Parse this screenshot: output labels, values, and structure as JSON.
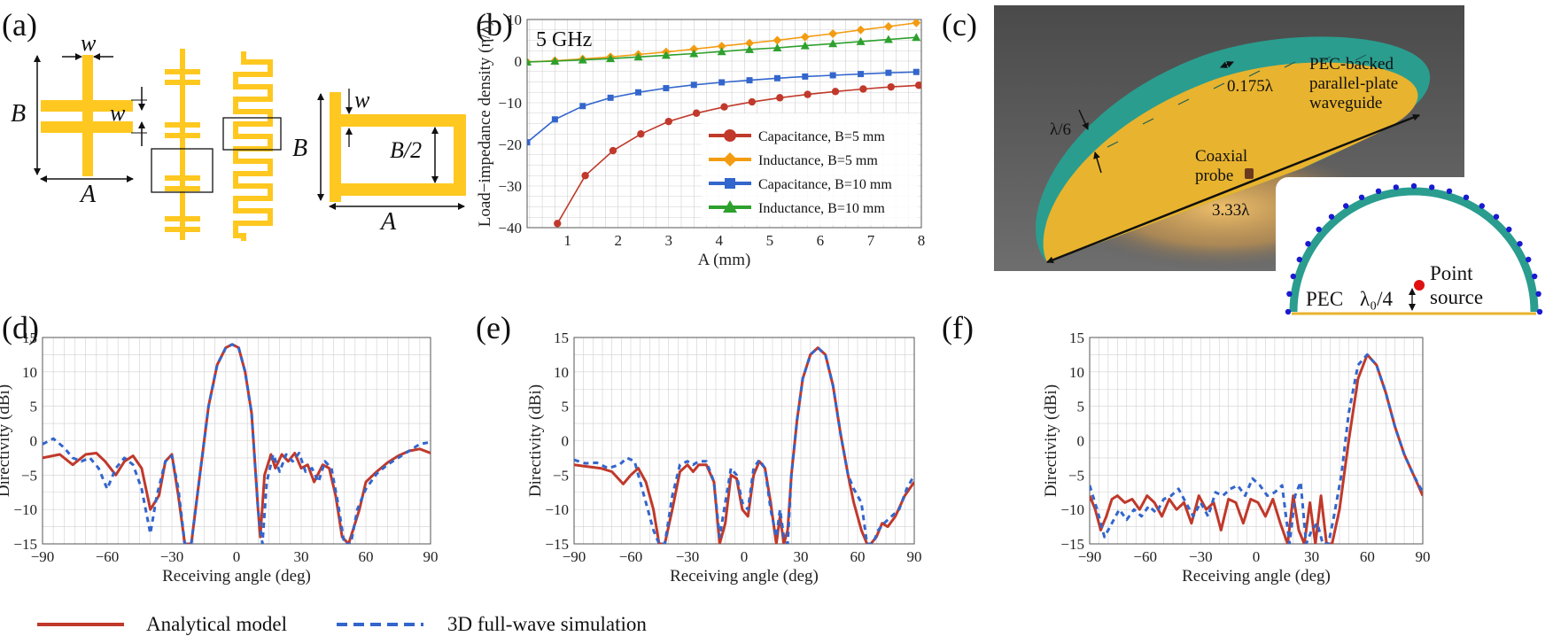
{
  "panel_labels": [
    "(a)",
    "(b)",
    "(c)",
    "(d)",
    "(e)",
    "(f)"
  ],
  "colors": {
    "gold": "#FFC820",
    "teal": "#2A9D8F",
    "red": "#C0392B",
    "orange": "#F39C12",
    "blue": "#3366CC",
    "green": "#2EA02E",
    "dark_bg": "#5A5A5A"
  },
  "panel_a": {
    "labels": {
      "w_top": "w",
      "w_side": "w",
      "B_left": "B",
      "A_bottom": "A",
      "w_right": "w",
      "B_right": "B",
      "B_half": "B/2",
      "A_right": "A"
    }
  },
  "panel_c": {
    "texts": {
      "line1": "PEC-backed",
      "line2": "parallel-plate",
      "line3": "waveguide",
      "thickness": "0.175λ",
      "height": "λ/6",
      "probe1": "Coaxial",
      "probe2": "probe",
      "diameter": "3.33λ",
      "inset_pec": "PEC",
      "inset_dist": "λ₀/4",
      "inset_src1": "Point",
      "inset_src2": "source"
    }
  },
  "legend_bottom": {
    "analytical": "Analytical model",
    "simulation": "3D full-wave simulation"
  },
  "chart_data": [
    {
      "id": "b",
      "type": "line",
      "annotation": "5 GHz",
      "xlabel": "A (mm)",
      "ylabel": "Load−impedance  density (η/λ)",
      "xlim": [
        0.2,
        8
      ],
      "ylim": [
        -40,
        10
      ],
      "xticks": [
        1,
        2,
        3,
        4,
        5,
        6,
        7,
        8
      ],
      "yticks": [
        -40,
        -30,
        -20,
        -10,
        0,
        10
      ],
      "series": [
        {
          "name": "Capacitance, B=5 mm",
          "color": "#C0392B",
          "marker": "circle",
          "x": [
            0.8,
            1.35,
            1.9,
            2.45,
            3.0,
            3.55,
            4.1,
            4.65,
            5.2,
            5.75,
            6.3,
            6.85,
            7.4,
            7.95
          ],
          "y": [
            -39,
            -27.5,
            -21.5,
            -17.5,
            -14.5,
            -12.5,
            -11,
            -9.8,
            -8.8,
            -8,
            -7.3,
            -6.7,
            -6.2,
            -5.8
          ]
        },
        {
          "name": "Inductance, B=5 mm",
          "color": "#F39C12",
          "marker": "diamond",
          "x": [
            0.2,
            0.75,
            1.3,
            1.85,
            2.4,
            2.95,
            3.5,
            4.05,
            4.6,
            5.15,
            5.7,
            6.25,
            6.8,
            7.35,
            7.9
          ],
          "y": [
            -0.2,
            0.1,
            0.5,
            1.0,
            1.6,
            2.2,
            2.9,
            3.6,
            4.3,
            5.0,
            5.8,
            6.6,
            7.5,
            8.3,
            9.2
          ]
        },
        {
          "name": "Capacitance, B=10 mm",
          "color": "#3366CC",
          "marker": "square",
          "x": [
            0.2,
            0.75,
            1.3,
            1.85,
            2.4,
            2.95,
            3.5,
            4.05,
            4.6,
            5.15,
            5.7,
            6.25,
            6.8,
            7.35,
            7.9
          ],
          "y": [
            -19.5,
            -14,
            -10.8,
            -8.8,
            -7.5,
            -6.5,
            -5.7,
            -5.1,
            -4.6,
            -4.1,
            -3.7,
            -3.4,
            -3.1,
            -2.8,
            -2.6
          ]
        },
        {
          "name": "Inductance, B=10 mm",
          "color": "#2EA02E",
          "marker": "triangle",
          "x": [
            0.2,
            0.75,
            1.3,
            1.85,
            2.4,
            2.95,
            3.5,
            4.05,
            4.6,
            5.15,
            5.7,
            6.25,
            6.8,
            7.35,
            7.9
          ],
          "y": [
            -0.2,
            0.0,
            0.3,
            0.6,
            1.0,
            1.4,
            1.8,
            2.3,
            2.8,
            3.2,
            3.7,
            4.2,
            4.7,
            5.2,
            5.7
          ]
        }
      ]
    },
    {
      "id": "d",
      "type": "line",
      "xlabel": "Receiving angle (deg)",
      "ylabel": "Directivity (dBi)",
      "xlim": [
        -90,
        90
      ],
      "ylim": [
        -15,
        15
      ],
      "xticks": [
        -90,
        -60,
        -30,
        0,
        30,
        60,
        90
      ],
      "yticks": [
        -15,
        -10,
        -5,
        0,
        5,
        10,
        15
      ],
      "series": [
        {
          "name": "Analytical model",
          "color": "#C0392B",
          "dash": "none",
          "x": [
            -90,
            -82,
            -76,
            -70,
            -65,
            -61,
            -56,
            -52,
            -48,
            -44,
            -40,
            -36,
            -33,
            -30,
            -27,
            -24,
            -21,
            -17,
            -13,
            -9,
            -5,
            -2,
            1,
            4,
            7,
            10,
            11,
            13,
            16,
            18,
            21,
            24,
            27,
            30,
            33,
            36,
            40,
            43,
            46,
            49,
            52,
            54,
            57,
            60,
            65,
            70,
            75,
            80,
            85,
            90
          ],
          "y": [
            -2.5,
            -2,
            -3.5,
            -2,
            -1.8,
            -3,
            -5,
            -3,
            -2.2,
            -4,
            -10,
            -8,
            -3,
            -2,
            -8,
            -15,
            -15,
            -5,
            5,
            11,
            13.5,
            14,
            13.5,
            10,
            4,
            -10,
            -14,
            -5,
            -2,
            -4,
            -2,
            -3,
            -1.8,
            -4,
            -3.5,
            -6,
            -3.5,
            -4,
            -8,
            -14,
            -15,
            -13,
            -10,
            -6,
            -4.5,
            -3.2,
            -2.2,
            -1.5,
            -1.2,
            -1.8
          ]
        },
        {
          "name": "3D full-wave simulation",
          "color": "#3366CC",
          "dash": "6 5",
          "x": [
            -90,
            -85,
            -80,
            -76,
            -72,
            -68,
            -64,
            -60,
            -56,
            -52,
            -48,
            -44,
            -40,
            -37,
            -33,
            -30,
            -27,
            -24,
            -21,
            -17,
            -13,
            -9,
            -5,
            -2,
            1,
            4,
            7,
            10,
            12,
            14,
            17,
            20,
            23,
            26,
            29,
            32,
            35,
            38,
            41,
            44,
            47,
            50,
            53,
            56,
            60,
            65,
            70,
            75,
            80,
            85,
            90
          ],
          "y": [
            -0.5,
            0.3,
            -1,
            -2.5,
            -3,
            -2.5,
            -4,
            -7,
            -4,
            -2.5,
            -3.5,
            -7,
            -13.5,
            -8,
            -3,
            -2.2,
            -7,
            -15,
            -15,
            -5,
            5,
            11,
            13.5,
            14,
            13.5,
            10,
            4,
            -10,
            -15,
            -6,
            -2,
            -4.5,
            -2,
            -3,
            -1.8,
            -4.5,
            -4,
            -6,
            -3,
            -4,
            -9,
            -15,
            -15,
            -10,
            -7,
            -4.8,
            -3.5,
            -2.5,
            -1.5,
            -0.5,
            -0.2
          ]
        }
      ]
    },
    {
      "id": "e",
      "type": "line",
      "xlabel": "Receiving angle (deg)",
      "ylabel": "Directivity (dBi)",
      "xlim": [
        -90,
        90
      ],
      "ylim": [
        -15,
        15
      ],
      "xticks": [
        -90,
        -60,
        -30,
        0,
        30,
        60,
        90
      ],
      "yticks": [
        -15,
        -10,
        -5,
        0,
        5,
        10,
        15
      ],
      "series": [
        {
          "name": "Analytical model",
          "color": "#C0392B",
          "dash": "none",
          "x": [
            -90,
            -82,
            -76,
            -70,
            -64,
            -60,
            -56,
            -52,
            -48,
            -45,
            -42,
            -38,
            -34,
            -30,
            -27,
            -24,
            -20,
            -16,
            -13,
            -10,
            -7,
            -4,
            -1,
            2,
            5,
            8,
            11,
            14,
            17,
            19,
            21,
            23,
            25,
            28,
            31,
            35,
            39,
            43,
            47,
            51,
            55,
            58,
            62,
            65,
            67,
            70,
            73,
            76,
            80,
            85,
            90
          ],
          "y": [
            -3.5,
            -3.8,
            -4,
            -4.5,
            -6.3,
            -5,
            -4,
            -6,
            -10,
            -15,
            -15,
            -10,
            -4.5,
            -3.5,
            -4.5,
            -3.5,
            -3.5,
            -6,
            -15,
            -12,
            -5,
            -5.5,
            -10,
            -11,
            -5,
            -3,
            -4,
            -9,
            -15,
            -11,
            -15,
            -13,
            -5,
            3,
            9,
            12.5,
            13.5,
            12.5,
            8,
            1,
            -5,
            -9,
            -13,
            -15,
            -15,
            -14,
            -12,
            -12.5,
            -11,
            -8,
            -6
          ]
        },
        {
          "name": "3D full-wave simulation",
          "color": "#3366CC",
          "dash": "6 5",
          "x": [
            -90,
            -84,
            -78,
            -72,
            -66,
            -62,
            -58,
            -55,
            -52,
            -48,
            -45,
            -42,
            -38,
            -34,
            -30,
            -27,
            -24,
            -20,
            -16,
            -13,
            -10,
            -7,
            -4,
            -1,
            2,
            5,
            8,
            11,
            14,
            17,
            19,
            21,
            23,
            25,
            28,
            31,
            35,
            39,
            43,
            47,
            51,
            55,
            58,
            62,
            65,
            68,
            71,
            74,
            78,
            82,
            86,
            90
          ],
          "y": [
            -2.8,
            -3.3,
            -3.2,
            -4,
            -3.5,
            -2.5,
            -3,
            -6,
            -9,
            -13,
            -15,
            -15,
            -8,
            -3.5,
            -3,
            -3.5,
            -3,
            -3,
            -6,
            -14,
            -9,
            -4,
            -5,
            -9,
            -10,
            -4,
            -2.8,
            -4,
            -10,
            -14,
            -10,
            -14,
            -15,
            -5,
            3,
            9,
            12.5,
            13.5,
            12.5,
            8,
            1,
            -5,
            -7,
            -9,
            -15,
            -15,
            -13,
            -12,
            -11,
            -10,
            -7,
            -5
          ]
        }
      ]
    },
    {
      "id": "f",
      "type": "line",
      "xlabel": "Receiving angle (deg)",
      "ylabel": "Directivity (dBi)",
      "xlim": [
        -90,
        90
      ],
      "ylim": [
        -15,
        15
      ],
      "xticks": [
        -90,
        -60,
        -30,
        0,
        30,
        60,
        90
      ],
      "yticks": [
        -15,
        -10,
        -5,
        0,
        5,
        10,
        15
      ],
      "series": [
        {
          "name": "Analytical model",
          "color": "#C0392B",
          "dash": "none",
          "x": [
            -90,
            -87,
            -84,
            -81,
            -78,
            -75,
            -71,
            -67,
            -63,
            -59,
            -55,
            -51,
            -47,
            -43,
            -39,
            -35,
            -31,
            -27,
            -23,
            -19,
            -15,
            -11,
            -7,
            -3,
            1,
            5,
            9,
            13,
            17,
            20,
            23,
            26,
            29,
            32,
            35,
            38,
            41,
            45,
            50,
            55,
            60,
            65,
            70,
            75,
            80,
            85,
            90
          ],
          "y": [
            -8,
            -10,
            -13,
            -11,
            -8.5,
            -8,
            -9,
            -8.5,
            -10,
            -8,
            -9,
            -11,
            -8.5,
            -10,
            -9,
            -12,
            -8,
            -10,
            -9,
            -13,
            -8.5,
            -9,
            -12,
            -8.5,
            -9,
            -11,
            -8.5,
            -12,
            -15,
            -8,
            -13,
            -15,
            -9,
            -15,
            -8,
            -15,
            -15,
            -10,
            0,
            9,
            12.5,
            11,
            7,
            2,
            -2,
            -5,
            -8
          ]
        },
        {
          "name": "3D full-wave simulation",
          "color": "#3366CC",
          "dash": "6 5",
          "x": [
            -90,
            -86,
            -82,
            -78,
            -74,
            -70,
            -66,
            -62,
            -58,
            -54,
            -50,
            -46,
            -42,
            -38,
            -34,
            -30,
            -26,
            -22,
            -18,
            -14,
            -10,
            -6,
            -2,
            2,
            6,
            10,
            14,
            18,
            21,
            24,
            27,
            30,
            33,
            36,
            39,
            42,
            46,
            50,
            55,
            60,
            65,
            70,
            75,
            80,
            85,
            90
          ],
          "y": [
            -6.5,
            -10,
            -14,
            -12,
            -10,
            -11.5,
            -10,
            -11,
            -9.5,
            -10.5,
            -8.5,
            -8,
            -7,
            -9,
            -11,
            -9,
            -11,
            -7.5,
            -8,
            -7,
            -6.5,
            -8,
            -5.5,
            -6.5,
            -8,
            -7.5,
            -6.5,
            -15,
            -8,
            -6,
            -15,
            -13,
            -12,
            -15,
            -15,
            -11,
            -5,
            4,
            11,
            12.5,
            11,
            7,
            2,
            -2,
            -5,
            -7.5
          ]
        }
      ]
    }
  ]
}
